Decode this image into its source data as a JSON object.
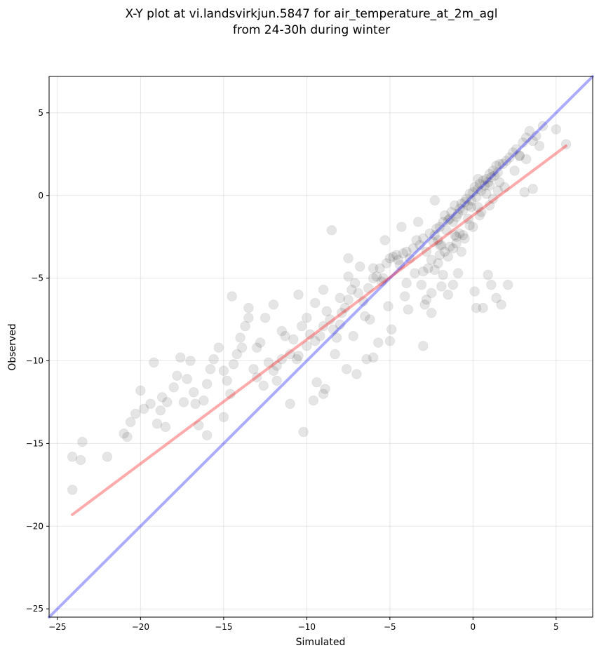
{
  "chart_data": {
    "type": "scatter",
    "title": [
      "X-Y plot at vi.landsvirkjun.5847 for air_temperature_at_2m_agl",
      "from 24-30h during winter"
    ],
    "xlabel": "Simulated",
    "ylabel": "Observed",
    "xlim": [
      -25.5,
      7.2
    ],
    "ylim": [
      -25.5,
      7.2
    ],
    "xticks": [
      -25,
      -20,
      -15,
      -10,
      -5,
      0,
      5
    ],
    "yticks": [
      5,
      0,
      -5,
      -10,
      -15,
      -20,
      -25
    ],
    "grid": true,
    "point_color": "#000000",
    "point_alpha": 0.1,
    "reference_lines": [
      {
        "kind": "one-to-one",
        "color": "#0000ff",
        "x": [
          -25.5,
          7.2
        ],
        "y": [
          -25.5,
          7.2
        ]
      },
      {
        "kind": "fit",
        "color": "#ff0000",
        "x": [
          -24.1,
          5.6
        ],
        "y": [
          -19.3,
          3.0
        ]
      }
    ],
    "series": [
      {
        "x": [
          -24.1,
          -24.1,
          -23.6,
          -23.5,
          -22.0,
          -21.0,
          -20.8,
          -20.6,
          -20.3,
          -20.0,
          -19.8,
          -19.4,
          -19.2,
          -19.0,
          -18.8,
          -18.7,
          -18.5,
          -18.4,
          -18.0,
          -17.8,
          -17.6,
          -17.4,
          -17.2,
          -17.0,
          -16.8,
          -16.7,
          -16.5,
          -16.2,
          -16.0,
          -15.8,
          -15.6,
          -15.3,
          -15.0,
          -14.8,
          -14.6,
          -14.4,
          -14.2,
          -14.0,
          -13.9,
          -13.7,
          -13.5,
          -13.2,
          -13.0,
          -12.8,
          -12.6,
          -12.3,
          -12.0,
          -11.8,
          -11.5,
          -11.3,
          -11.0,
          -10.8,
          -10.5,
          -10.3,
          -10.0,
          -9.8,
          -9.5,
          -9.2,
          -9.0,
          -8.8,
          -8.6,
          -8.4,
          -8.2,
          -8.0,
          -7.9,
          -7.7,
          -7.5,
          -7.3,
          -7.1,
          -6.9,
          -6.6,
          -6.3,
          -6.0,
          -5.8,
          -5.6,
          -5.4,
          -5.2,
          -5.0,
          -4.8,
          -4.6,
          -4.4,
          -4.2,
          -4.0,
          -3.8,
          -3.6,
          -3.4,
          -3.2,
          -3.0,
          -2.8,
          -2.6,
          -2.5,
          -2.4,
          -2.3,
          -2.2,
          -2.1,
          -2.0,
          -1.9,
          -1.8,
          -1.7,
          -1.6,
          -1.5,
          -1.4,
          -1.3,
          -1.2,
          -1.1,
          -1.0,
          -0.9,
          -0.8,
          -0.7,
          -0.6,
          -0.5,
          -0.4,
          -0.3,
          -0.2,
          -0.1,
          0.0,
          0.1,
          0.2,
          0.3,
          0.4,
          0.5,
          0.6,
          0.7,
          0.8,
          0.9,
          1.0,
          1.1,
          1.2,
          1.3,
          1.4,
          1.5,
          1.6,
          1.8,
          2.0,
          2.2,
          2.4,
          2.6,
          2.8,
          3.0,
          3.2,
          3.4,
          3.6,
          3.8,
          4.0,
          4.2,
          5.0,
          5.6,
          -12.0,
          -10.5,
          -9.0,
          -7.5,
          -6.0,
          -4.5,
          -3.0,
          -2.0,
          -1.0,
          0.0,
          1.0,
          1.5,
          -14.5,
          -13.5,
          -12.5,
          -11.5,
          -10.0,
          -9.5,
          -8.0,
          -6.5,
          -5.5,
          -4.0,
          -3.5,
          -2.7,
          -1.5,
          -0.5,
          0.5,
          -11.0,
          -9.0,
          -7.0,
          -6.0,
          -5.0,
          -3.0,
          -2.5,
          -1.8,
          -1.2,
          -0.8,
          -0.3,
          0.3,
          0.8,
          2.5,
          3.2,
          -8.5,
          -7.5,
          -6.8,
          -5.3,
          -4.3,
          -3.3,
          -2.3,
          0.3,
          1.0,
          1.6,
          2.8,
          3.6,
          -16.0,
          -15.0,
          -13.0,
          -11.8,
          -10.6,
          -9.4,
          -8.3,
          -7.2,
          -6.2,
          -5.1,
          -4.1,
          -3.1,
          -2.1,
          -1.1,
          -0.1,
          -10.2,
          -9.6,
          -8.9,
          -7.6,
          -6.4,
          -5.7,
          -4.9,
          -3.9,
          -2.9,
          -1.9,
          -0.9,
          0.1,
          1.1,
          2.1,
          3.1,
          -2.3,
          -2.0,
          -1.7,
          -1.4,
          -1.0,
          -0.6,
          -0.2,
          0.4,
          1.2,
          1.9,
          -1.5,
          -1.2,
          -2.8,
          -2.5,
          0.6,
          1.4,
          1.7,
          0.2,
          0.9,
          -0.7
        ],
        "y": [
          -17.8,
          -15.8,
          -16.0,
          -14.9,
          -15.8,
          -14.4,
          -14.6,
          -13.7,
          -13.2,
          -11.8,
          -12.9,
          -12.6,
          -10.1,
          -13.8,
          -13.0,
          -12.2,
          -14.0,
          -12.5,
          -11.6,
          -10.9,
          -9.8,
          -12.5,
          -11.1,
          -10.0,
          -11.9,
          -12.6,
          -13.9,
          -12.4,
          -11.4,
          -10.5,
          -9.9,
          -9.2,
          -10.6,
          -11.2,
          -12.0,
          -10.2,
          -9.6,
          -8.6,
          -9.2,
          -7.9,
          -7.4,
          -10.5,
          -9.2,
          -8.9,
          -11.5,
          -10.1,
          -10.6,
          -11.2,
          -9.9,
          -8.5,
          -9.6,
          -8.7,
          -9.7,
          -7.9,
          -7.4,
          -8.4,
          -6.5,
          -8.5,
          -7.9,
          -7.0,
          -7.5,
          -8.1,
          -8.6,
          -7.8,
          -7.1,
          -6.8,
          -6.3,
          -5.7,
          -5.3,
          -5.9,
          -6.4,
          -5.6,
          -5.0,
          -4.9,
          -4.4,
          -5.0,
          -4.1,
          -3.8,
          -3.7,
          -3.6,
          -4.2,
          -3.5,
          -3.4,
          -3.8,
          -3.2,
          -2.7,
          -3.0,
          -2.6,
          -3.4,
          -2.3,
          -3.9,
          -2.8,
          -2.4,
          -2.0,
          -2.7,
          -1.9,
          -3.0,
          -1.6,
          -1.2,
          -2.1,
          -1.5,
          -1.4,
          -1.0,
          -1.6,
          -0.6,
          -1.3,
          -1.1,
          -0.8,
          -0.5,
          -0.9,
          -0.4,
          -0.2,
          -0.6,
          0.1,
          -0.3,
          0.2,
          0.5,
          -0.1,
          0.4,
          0.7,
          0.3,
          0.9,
          0.6,
          1.0,
          0.8,
          1.3,
          1.1,
          1.5,
          1.2,
          1.8,
          1.4,
          0.8,
          1.9,
          2.1,
          2.3,
          2.6,
          2.8,
          2.4,
          3.2,
          3.5,
          3.9,
          0.4,
          3.6,
          3.0,
          4.2,
          4.0,
          3.1,
          -6.6,
          -6.0,
          -5.7,
          -4.9,
          -4.4,
          -3.9,
          -4.6,
          -3.0,
          -2.5,
          -1.9,
          -0.6,
          0.3,
          -6.1,
          -6.8,
          -7.4,
          -8.2,
          -9.1,
          -8.8,
          -6.2,
          -7.3,
          -5.2,
          -5.3,
          -4.7,
          -4.4,
          -3.7,
          -2.6,
          -1.0,
          -12.6,
          -12.0,
          -10.8,
          -9.8,
          -8.8,
          -9.1,
          -7.1,
          -4.8,
          -3.2,
          -2.3,
          -1.4,
          -0.7,
          0.1,
          1.5,
          2.2,
          -2.1,
          -3.8,
          -4.3,
          -2.7,
          -1.9,
          -1.6,
          -0.3,
          1.0,
          0.6,
          1.9,
          2.4,
          3.3,
          -14.5,
          -13.4,
          -11.0,
          -10.3,
          -9.9,
          -11.3,
          -9.6,
          -8.5,
          -7.5,
          -6.7,
          -6.1,
          -5.4,
          -4.1,
          -2.4,
          -0.7,
          -14.3,
          -12.4,
          -11.7,
          -10.5,
          -9.9,
          -8.9,
          -8.1,
          -6.9,
          -6.6,
          -5.5,
          -4.7,
          -5.8,
          -5.4,
          -5.4,
          0.2,
          -4.5,
          -3.6,
          -3.4,
          -3.1,
          -2.9,
          -2.4,
          -1.8,
          -1.2,
          -0.2,
          0.5,
          -6.0,
          -5.4,
          -6.3,
          -5.9,
          -6.8,
          -6.2,
          -6.6,
          -6.8,
          -4.8,
          -3.4
        ]
      }
    ]
  }
}
